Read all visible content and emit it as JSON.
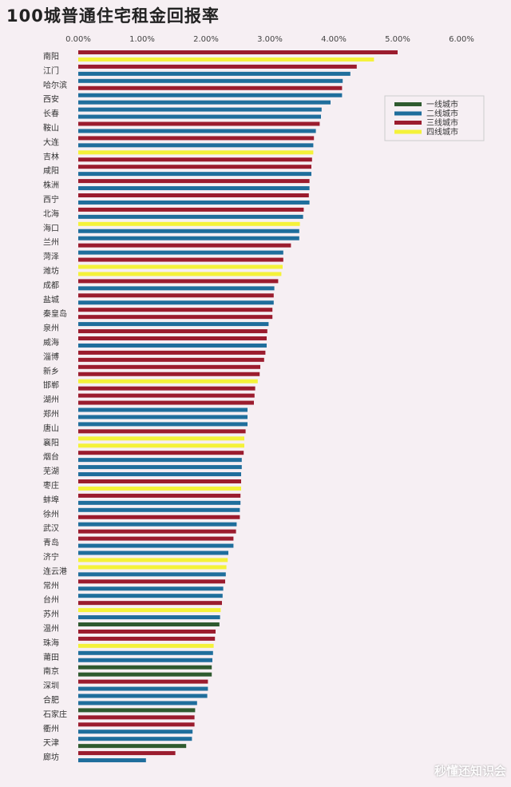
{
  "title": "100城普通住宅租金回报率",
  "watermark": "秒懂还知识会",
  "colors": {
    "一线城市": "#2f5a2f",
    "二线城市": "#1f6e9c",
    "三线城市": "#9b1c2e",
    "四线城市": "#f4f23a"
  },
  "chart_data": {
    "type": "bar",
    "orientation": "horizontal",
    "title": "100城普通住宅租金回报率",
    "xlim": [
      0,
      0.06
    ],
    "xticks": [
      "0.00%",
      "1.00%",
      "2.00%",
      "3.00%",
      "4.00%",
      "5.00%",
      "6.00%"
    ],
    "legend": {
      "position": "top-right",
      "entries": [
        "一线城市",
        "二线城市",
        "三线城市",
        "四线城市"
      ]
    },
    "labels": [
      "南阳",
      "江门",
      "哈尔滨",
      "西安",
      "长春",
      "鞍山",
      "大连",
      "吉林",
      "咸阳",
      "株洲",
      "西宁",
      "北海",
      "海口",
      "兰州",
      "菏泽",
      "潍坊",
      "成都",
      "盐城",
      "秦皇岛",
      "泉州",
      "威海",
      "淄博",
      "新乡",
      "邯郸",
      "湖州",
      "郑州",
      "唐山",
      "襄阳",
      "烟台",
      "芜湖",
      "枣庄",
      "蚌埠",
      "徐州",
      "武汉",
      "青岛",
      "济宁",
      "连云港",
      "常州",
      "台州",
      "苏州",
      "温州",
      "珠海",
      "莆田",
      "南京",
      "深圳",
      "合肥",
      "石家庄",
      "衢州",
      "天津",
      "廊坊"
    ],
    "bars": [
      {
        "tier": "三线城市",
        "value": 0.05
      },
      {
        "tier": "四线城市",
        "value": 0.0463
      },
      {
        "tier": "三线城市",
        "value": 0.0436
      },
      {
        "tier": "二线城市",
        "value": 0.0426
      },
      {
        "tier": "二线城市",
        "value": 0.0414
      },
      {
        "tier": "三线城市",
        "value": 0.0413
      },
      {
        "tier": "二线城市",
        "value": 0.0413
      },
      {
        "tier": "二线城市",
        "value": 0.0395
      },
      {
        "tier": "二线城市",
        "value": 0.0381
      },
      {
        "tier": "二线城市",
        "value": 0.038
      },
      {
        "tier": "三线城市",
        "value": 0.0378
      },
      {
        "tier": "二线城市",
        "value": 0.0372
      },
      {
        "tier": "三线城市",
        "value": 0.0369
      },
      {
        "tier": "二线城市",
        "value": 0.0368
      },
      {
        "tier": "四线城市",
        "value": 0.0368
      },
      {
        "tier": "三线城市",
        "value": 0.0366
      },
      {
        "tier": "三线城市",
        "value": 0.0365
      },
      {
        "tier": "二线城市",
        "value": 0.0365
      },
      {
        "tier": "三线城市",
        "value": 0.0362
      },
      {
        "tier": "二线城市",
        "value": 0.0362
      },
      {
        "tier": "三线城市",
        "value": 0.0361
      },
      {
        "tier": "二线城市",
        "value": 0.0362
      },
      {
        "tier": "三线城市",
        "value": 0.0353
      },
      {
        "tier": "二线城市",
        "value": 0.0352
      },
      {
        "tier": "四线城市",
        "value": 0.0347
      },
      {
        "tier": "二线城市",
        "value": 0.0346
      },
      {
        "tier": "二线城市",
        "value": 0.0346
      },
      {
        "tier": "三线城市",
        "value": 0.0333
      },
      {
        "tier": "二线城市",
        "value": 0.0321
      },
      {
        "tier": "三线城市",
        "value": 0.0321
      },
      {
        "tier": "四线城市",
        "value": 0.032
      },
      {
        "tier": "四线城市",
        "value": 0.0318
      },
      {
        "tier": "三线城市",
        "value": 0.0313
      },
      {
        "tier": "二线城市",
        "value": 0.0307
      },
      {
        "tier": "三线城市",
        "value": 0.0306
      },
      {
        "tier": "二线城市",
        "value": 0.0306
      },
      {
        "tier": "三线城市",
        "value": 0.0304
      },
      {
        "tier": "三线城市",
        "value": 0.0304
      },
      {
        "tier": "二线城市",
        "value": 0.0298
      },
      {
        "tier": "三线城市",
        "value": 0.0296
      },
      {
        "tier": "三线城市",
        "value": 0.0295
      },
      {
        "tier": "二线城市",
        "value": 0.0295
      },
      {
        "tier": "三线城市",
        "value": 0.0293
      },
      {
        "tier": "三线城市",
        "value": 0.0291
      },
      {
        "tier": "三线城市",
        "value": 0.0285
      },
      {
        "tier": "三线城市",
        "value": 0.0284
      },
      {
        "tier": "四线城市",
        "value": 0.0281
      },
      {
        "tier": "三线城市",
        "value": 0.0277
      },
      {
        "tier": "三线城市",
        "value": 0.0276
      },
      {
        "tier": "三线城市",
        "value": 0.0275
      },
      {
        "tier": "二线城市",
        "value": 0.0265
      },
      {
        "tier": "二线城市",
        "value": 0.0265
      },
      {
        "tier": "二线城市",
        "value": 0.0265
      },
      {
        "tier": "三线城市",
        "value": 0.0262
      },
      {
        "tier": "四线城市",
        "value": 0.026
      },
      {
        "tier": "四线城市",
        "value": 0.026
      },
      {
        "tier": "三线城市",
        "value": 0.0259
      },
      {
        "tier": "二线城市",
        "value": 0.0256
      },
      {
        "tier": "二线城市",
        "value": 0.0256
      },
      {
        "tier": "二线城市",
        "value": 0.0255
      },
      {
        "tier": "三线城市",
        "value": 0.0255
      },
      {
        "tier": "四线城市",
        "value": 0.0255
      },
      {
        "tier": "三线城市",
        "value": 0.0254
      },
      {
        "tier": "二线城市",
        "value": 0.0254
      },
      {
        "tier": "二线城市",
        "value": 0.0253
      },
      {
        "tier": "三线城市",
        "value": 0.0253
      },
      {
        "tier": "二线城市",
        "value": 0.0248
      },
      {
        "tier": "三线城市",
        "value": 0.0247
      },
      {
        "tier": "三线城市",
        "value": 0.0243
      },
      {
        "tier": "二线城市",
        "value": 0.0243
      },
      {
        "tier": "二线城市",
        "value": 0.0235
      },
      {
        "tier": "四线城市",
        "value": 0.0234
      },
      {
        "tier": "四线城市",
        "value": 0.0232
      },
      {
        "tier": "二线城市",
        "value": 0.0231
      },
      {
        "tier": "三线城市",
        "value": 0.023
      },
      {
        "tier": "二线城市",
        "value": 0.0227
      },
      {
        "tier": "二线城市",
        "value": 0.0226
      },
      {
        "tier": "三线城市",
        "value": 0.0225
      },
      {
        "tier": "四线城市",
        "value": 0.0223
      },
      {
        "tier": "二线城市",
        "value": 0.0222
      },
      {
        "tier": "一线城市",
        "value": 0.0221
      },
      {
        "tier": "三线城市",
        "value": 0.0215
      },
      {
        "tier": "三线城市",
        "value": 0.0214
      },
      {
        "tier": "四线城市",
        "value": 0.0212
      },
      {
        "tier": "二线城市",
        "value": 0.0211
      },
      {
        "tier": "二线城市",
        "value": 0.021
      },
      {
        "tier": "一线城市",
        "value": 0.0209
      },
      {
        "tier": "一线城市",
        "value": 0.0209
      },
      {
        "tier": "三线城市",
        "value": 0.0203
      },
      {
        "tier": "二线城市",
        "value": 0.0203
      },
      {
        "tier": "二线城市",
        "value": 0.0202
      },
      {
        "tier": "二线城市",
        "value": 0.0186
      },
      {
        "tier": "一线城市",
        "value": 0.0183
      },
      {
        "tier": "三线城市",
        "value": 0.0182
      },
      {
        "tier": "三线城市",
        "value": 0.0182
      },
      {
        "tier": "二线城市",
        "value": 0.0179
      },
      {
        "tier": "二线城市",
        "value": 0.0178
      },
      {
        "tier": "一线城市",
        "value": 0.0169
      },
      {
        "tier": "三线城市",
        "value": 0.0152
      },
      {
        "tier": "二线城市",
        "value": 0.0106
      }
    ]
  }
}
